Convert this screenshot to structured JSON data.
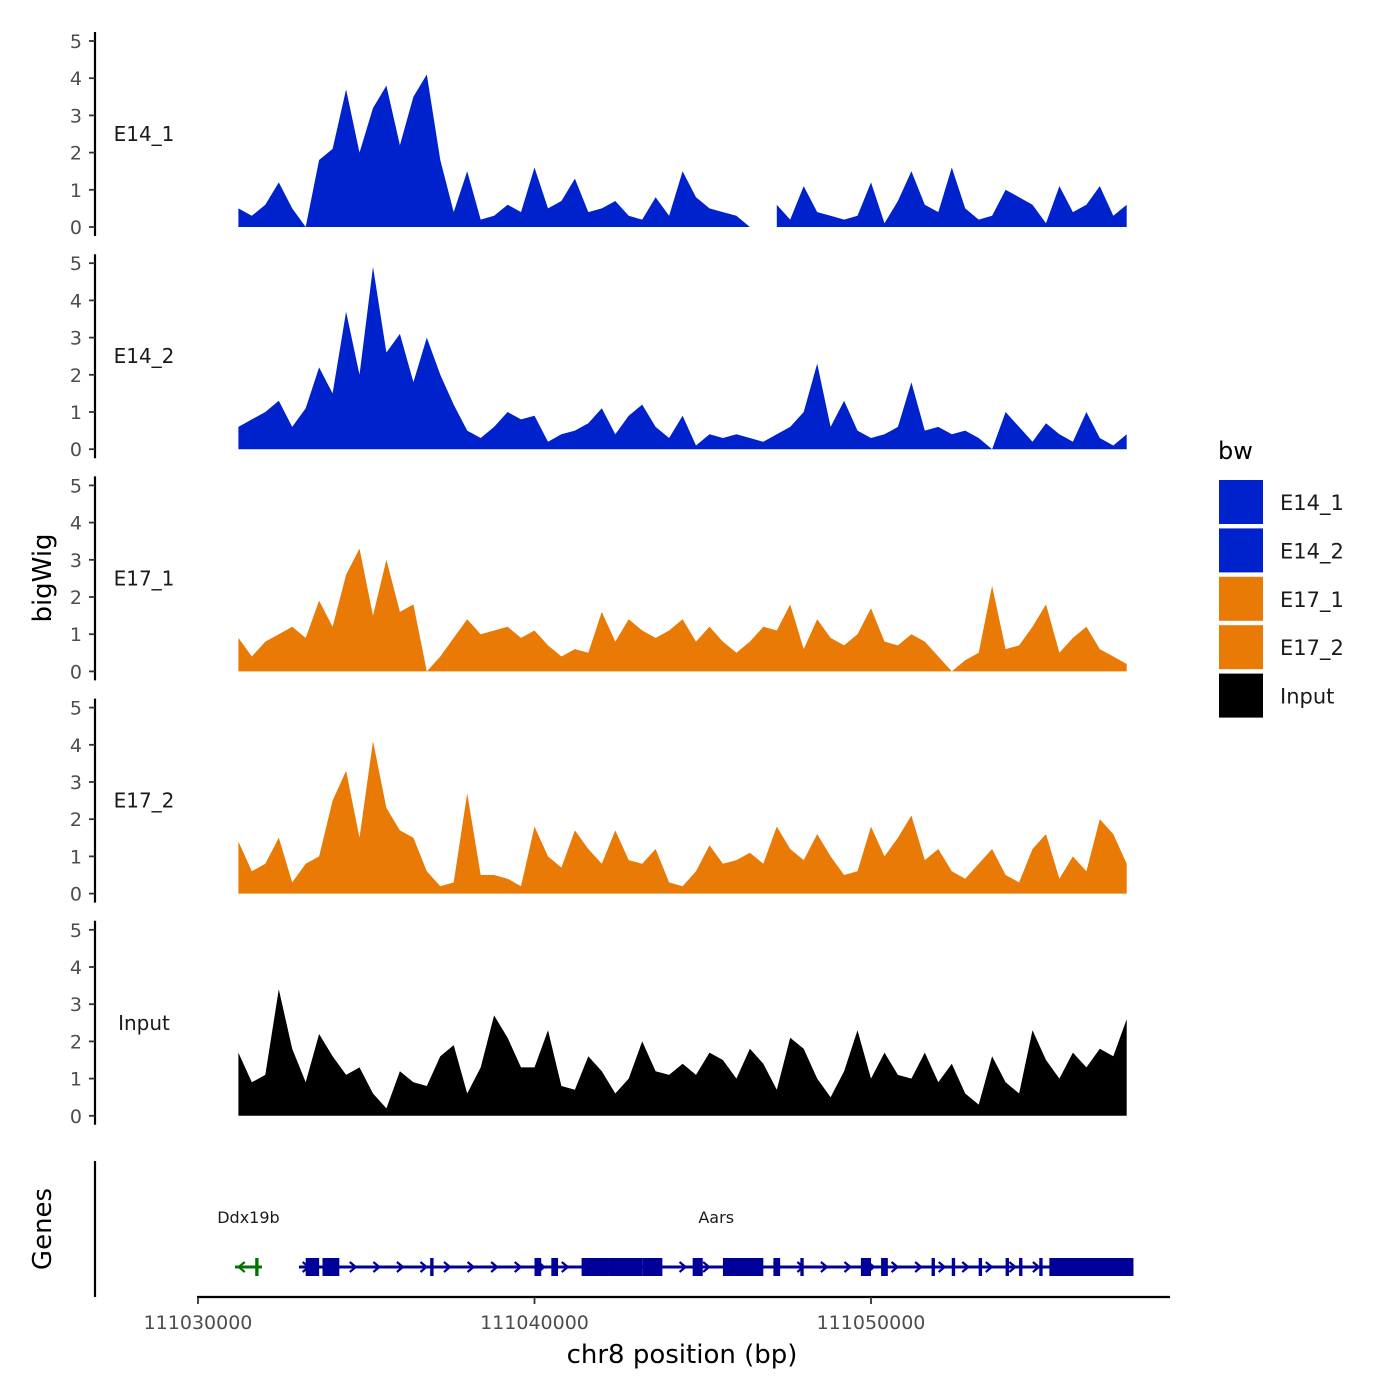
{
  "chart_data": {
    "type": "area",
    "x_label": "chr8 position (bp)",
    "y_label": "bigWig",
    "genes_label": "Genes",
    "xlim": [
      111027000,
      111058000
    ],
    "x_ticks": [
      111030000,
      111040000,
      111050000
    ],
    "x_tick_labels": [
      "111030000",
      "111040000",
      "111050000"
    ],
    "ylim": [
      0,
      5
    ],
    "y_ticks": [
      0,
      1,
      2,
      3,
      4,
      5
    ],
    "y_tick_labels": [
      "0",
      "1",
      "2",
      "3",
      "4",
      "5"
    ],
    "legend": {
      "title": "bw",
      "entries": [
        {
          "label": "E14_1",
          "color": "#0022cc"
        },
        {
          "label": "E14_2",
          "color": "#0022cc"
        },
        {
          "label": "E17_1",
          "color": "#e87a05"
        },
        {
          "label": "E17_2",
          "color": "#e87a05"
        },
        {
          "label": "Input",
          "color": "#000000"
        }
      ]
    },
    "x_positions": [
      111031200,
      111031600,
      111032000,
      111032400,
      111032800,
      111033200,
      111033600,
      111034000,
      111034400,
      111034800,
      111035200,
      111035600,
      111036000,
      111036400,
      111036800,
      111037200,
      111037600,
      111038000,
      111038400,
      111038800,
      111039200,
      111039600,
      111040000,
      111040400,
      111040800,
      111041200,
      111041600,
      111042000,
      111042400,
      111042800,
      111043200,
      111043600,
      111044000,
      111044400,
      111044800,
      111045200,
      111045600,
      111046000,
      111046400,
      111046800,
      111047200,
      111047600,
      111048000,
      111048400,
      111048800,
      111049200,
      111049600,
      111050000,
      111050400,
      111050800,
      111051200,
      111051600,
      111052000,
      111052400,
      111052800,
      111053200,
      111053600,
      111054000,
      111054400,
      111054800,
      111055200,
      111055600,
      111056000,
      111056400,
      111056800,
      111057200,
      111057600
    ],
    "series": [
      {
        "name": "E14_1",
        "color": "#0022cc",
        "values": [
          0.5,
          0.3,
          0.6,
          1.2,
          0.5,
          0.0,
          1.8,
          2.1,
          3.7,
          2.0,
          3.2,
          3.8,
          2.2,
          3.5,
          4.1,
          1.8,
          0.4,
          1.5,
          0.2,
          0.3,
          0.6,
          0.4,
          1.6,
          0.5,
          0.7,
          1.3,
          0.4,
          0.5,
          0.7,
          0.3,
          0.2,
          0.8,
          0.3,
          1.5,
          0.8,
          0.5,
          0.4,
          0.3,
          0.0,
          null,
          0.6,
          0.2,
          1.1,
          0.4,
          0.3,
          0.2,
          0.3,
          1.2,
          0.1,
          0.7,
          1.5,
          0.6,
          0.4,
          1.6,
          0.5,
          0.2,
          0.3,
          1.0,
          0.8,
          0.6,
          0.1,
          1.1,
          0.4,
          0.6,
          1.1,
          0.3,
          0.6
        ]
      },
      {
        "name": "E14_2",
        "color": "#0022cc",
        "values": [
          0.6,
          0.8,
          1.0,
          1.3,
          0.6,
          1.1,
          2.2,
          1.5,
          3.7,
          2.0,
          4.9,
          2.6,
          3.1,
          1.8,
          3.0,
          2.0,
          1.2,
          0.5,
          0.3,
          0.6,
          1.0,
          0.8,
          0.9,
          0.2,
          0.4,
          0.5,
          0.7,
          1.1,
          0.4,
          0.9,
          1.2,
          0.6,
          0.3,
          0.9,
          0.1,
          0.4,
          0.3,
          0.4,
          0.3,
          0.2,
          0.4,
          0.6,
          1.0,
          2.3,
          0.6,
          1.3,
          0.5,
          0.3,
          0.4,
          0.6,
          1.8,
          0.5,
          0.6,
          0.4,
          0.5,
          0.3,
          0.0,
          1.0,
          0.6,
          0.2,
          0.7,
          0.4,
          0.2,
          1.0,
          0.3,
          0.1,
          0.4
        ]
      },
      {
        "name": "E17_1",
        "color": "#e87a05",
        "values": [
          0.9,
          0.4,
          0.8,
          1.0,
          1.2,
          0.9,
          1.9,
          1.2,
          2.6,
          3.3,
          1.5,
          3.0,
          1.6,
          1.8,
          0.0,
          0.4,
          0.9,
          1.4,
          1.0,
          1.1,
          1.2,
          0.9,
          1.1,
          0.7,
          0.4,
          0.6,
          0.5,
          1.6,
          0.8,
          1.4,
          1.1,
          0.9,
          1.1,
          1.4,
          0.8,
          1.2,
          0.8,
          0.5,
          0.8,
          1.2,
          1.1,
          1.8,
          0.6,
          1.4,
          0.9,
          0.7,
          1.0,
          1.7,
          0.8,
          0.7,
          1.0,
          0.8,
          0.4,
          0.0,
          0.3,
          0.5,
          2.3,
          0.6,
          0.7,
          1.2,
          1.8,
          0.5,
          0.9,
          1.2,
          0.6,
          0.4,
          0.2
        ]
      },
      {
        "name": "E17_2",
        "color": "#e87a05",
        "values": [
          1.4,
          0.6,
          0.8,
          1.5,
          0.3,
          0.8,
          1.0,
          2.5,
          3.3,
          1.5,
          4.1,
          2.3,
          1.7,
          1.5,
          0.6,
          0.2,
          0.3,
          2.7,
          0.5,
          0.5,
          0.4,
          0.2,
          1.8,
          1.0,
          0.7,
          1.7,
          1.2,
          0.8,
          1.7,
          0.9,
          0.8,
          1.2,
          0.3,
          0.2,
          0.6,
          1.3,
          0.8,
          0.9,
          1.1,
          0.8,
          1.8,
          1.2,
          0.9,
          1.6,
          1.0,
          0.5,
          0.6,
          1.8,
          1.0,
          1.5,
          2.1,
          0.9,
          1.2,
          0.6,
          0.4,
          0.8,
          1.2,
          0.5,
          0.3,
          1.2,
          1.6,
          0.4,
          1.0,
          0.6,
          2.0,
          1.6,
          0.8
        ]
      },
      {
        "name": "Input",
        "color": "#000000",
        "values": [
          1.7,
          0.9,
          1.1,
          3.4,
          1.8,
          0.9,
          2.2,
          1.6,
          1.1,
          1.3,
          0.6,
          0.2,
          1.2,
          0.9,
          0.8,
          1.6,
          1.9,
          0.6,
          1.3,
          2.7,
          2.1,
          1.3,
          1.3,
          2.3,
          0.8,
          0.7,
          1.6,
          1.2,
          0.6,
          1.0,
          2.0,
          1.2,
          1.1,
          1.4,
          1.1,
          1.7,
          1.5,
          1.0,
          1.8,
          1.4,
          0.7,
          2.1,
          1.8,
          1.0,
          0.5,
          1.2,
          2.3,
          1.0,
          1.7,
          1.1,
          1.0,
          1.7,
          0.9,
          1.4,
          0.6,
          0.3,
          1.6,
          0.9,
          0.6,
          2.3,
          1.5,
          1.0,
          1.7,
          1.3,
          1.8,
          1.6,
          2.6
        ]
      }
    ],
    "genes": [
      {
        "name": "Ddx19b",
        "label_x": 111031500,
        "start": 111031100,
        "end": 111031900,
        "strand": "-",
        "color": "#007300",
        "exons": [
          [
            111031700,
            111031800
          ]
        ]
      },
      {
        "name": "Aars",
        "label_x": 111045400,
        "start": 111033000,
        "end": 111057800,
        "strand": "+",
        "color": "#000099",
        "exons": [
          [
            111033200,
            111033600
          ],
          [
            111033700,
            111034200
          ],
          [
            111036900,
            111037000
          ],
          [
            111040000,
            111040200
          ],
          [
            111040500,
            111040700
          ],
          [
            111041400,
            111042200
          ],
          [
            111042200,
            111043200
          ],
          [
            111043200,
            111043800
          ],
          [
            111044700,
            111045000
          ],
          [
            111045600,
            111046800
          ],
          [
            111047100,
            111047300
          ],
          [
            111047900,
            111048000
          ],
          [
            111049700,
            111050000
          ],
          [
            111050300,
            111050500
          ],
          [
            111051800,
            111051900
          ],
          [
            111052400,
            111052500
          ],
          [
            111053200,
            111053300
          ],
          [
            111054000,
            111054100
          ],
          [
            111054400,
            111054500
          ],
          [
            111055000,
            111055100
          ],
          [
            111055300,
            111057800
          ]
        ]
      }
    ]
  }
}
